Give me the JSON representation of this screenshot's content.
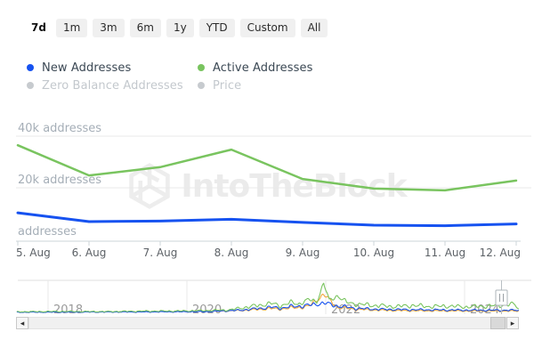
{
  "toolbar": {
    "ranges": [
      {
        "label": "7d",
        "selected": true
      },
      {
        "label": "1m",
        "selected": false
      },
      {
        "label": "3m",
        "selected": false
      },
      {
        "label": "6m",
        "selected": false
      },
      {
        "label": "1y",
        "selected": false
      },
      {
        "label": "YTD",
        "selected": false
      },
      {
        "label": "Custom",
        "selected": false
      },
      {
        "label": "All",
        "selected": false
      }
    ]
  },
  "legend": {
    "items": [
      {
        "label": "New Addresses",
        "color": "#1652f0",
        "enabled": true
      },
      {
        "label": "Active Addresses",
        "color": "#79c45f",
        "enabled": true
      },
      {
        "label": "Zero Balance Addresses",
        "color": "#c7cbcf",
        "enabled": false
      },
      {
        "label": "Price",
        "color": "#c7cbcf",
        "enabled": false
      }
    ]
  },
  "watermark": {
    "text": "IntoTheBlock"
  },
  "colors": {
    "new_addresses": "#1652f0",
    "active_addresses": "#79c45f",
    "price": "#f0a73c",
    "gridline": "#e8e8e8",
    "axis_line": "#ccd4da",
    "y_label": "#a5aeb7",
    "x_label": "#5c6166",
    "year_label": "#9a9a9a",
    "watermark": "#ebebeb"
  },
  "icons": {
    "scrollbar_left": "◂",
    "scrollbar_right": "▸"
  },
  "chart_data": [
    {
      "type": "line",
      "title": "",
      "categories": [
        "5. Aug",
        "6. Aug",
        "7. Aug",
        "8. Aug",
        "9. Aug",
        "10. Aug",
        "11. Aug",
        "12. Aug"
      ],
      "series": [
        {
          "name": "Active Addresses",
          "color": "#79c45f",
          "values": [
            36500,
            24800,
            28000,
            34800,
            23400,
            19700,
            19000,
            22800
          ]
        },
        {
          "name": "New Addresses",
          "color": "#1652f0",
          "values": [
            10300,
            6900,
            7100,
            7800,
            6600,
            5500,
            5300,
            6000
          ]
        }
      ],
      "y_axis": {
        "unit": "addresses",
        "ticks": [
          {
            "value": 0,
            "label": "addresses"
          },
          {
            "value": 20000,
            "label": "20k addresses"
          },
          {
            "value": 40000,
            "label": "40k addresses"
          }
        ],
        "ylim": [
          0,
          46500
        ]
      },
      "grid": true,
      "legend_position": "top-left"
    },
    {
      "type": "line",
      "role": "navigator-overview",
      "year_ticks": [
        {
          "label": "2018",
          "year": 2018
        },
        {
          "label": "2020",
          "year": 2020
        },
        {
          "label": "2022",
          "year": 2022
        },
        {
          "label": "2024",
          "year": 2024
        }
      ],
      "x_range_years": [
        2017.55,
        2024.78
      ],
      "note": "relative activity 0-1, spike late 2021",
      "series": [
        {
          "name": "Active Addresses",
          "color": "#79c45f",
          "anchors": [
            [
              2017.55,
              0.05
            ],
            [
              2018.2,
              0.06
            ],
            [
              2018.8,
              0.055
            ],
            [
              2019.4,
              0.07
            ],
            [
              2019.9,
              0.075
            ],
            [
              2020.3,
              0.09
            ],
            [
              2020.6,
              0.11
            ],
            [
              2020.75,
              0.16
            ],
            [
              2020.9,
              0.22
            ],
            [
              2021.05,
              0.26
            ],
            [
              2021.2,
              0.33
            ],
            [
              2021.35,
              0.25
            ],
            [
              2021.5,
              0.36
            ],
            [
              2021.6,
              0.3
            ],
            [
              2021.75,
              0.45
            ],
            [
              2021.87,
              0.38
            ],
            [
              2021.97,
              1.0
            ],
            [
              2022.05,
              0.42
            ],
            [
              2022.17,
              0.58
            ],
            [
              2022.3,
              0.36
            ],
            [
              2022.45,
              0.3
            ],
            [
              2022.7,
              0.26
            ],
            [
              2023.0,
              0.22
            ],
            [
              2023.25,
              0.26
            ],
            [
              2023.5,
              0.22
            ],
            [
              2023.75,
              0.24
            ],
            [
              2024.0,
              0.21
            ],
            [
              2024.25,
              0.23
            ],
            [
              2024.5,
              0.26
            ],
            [
              2024.72,
              0.3
            ],
            [
              2024.78,
              0.14
            ]
          ]
        },
        {
          "name": "New Addresses",
          "color": "#1652f0",
          "anchors": [
            [
              2017.55,
              0.035
            ],
            [
              2018.5,
              0.04
            ],
            [
              2019.5,
              0.045
            ],
            [
              2020.3,
              0.055
            ],
            [
              2020.75,
              0.1
            ],
            [
              2021.05,
              0.16
            ],
            [
              2021.2,
              0.2
            ],
            [
              2021.35,
              0.17
            ],
            [
              2021.5,
              0.22
            ],
            [
              2021.75,
              0.26
            ],
            [
              2021.97,
              0.34
            ],
            [
              2022.17,
              0.24
            ],
            [
              2022.45,
              0.16
            ],
            [
              2022.8,
              0.13
            ],
            [
              2023.2,
              0.12
            ],
            [
              2023.7,
              0.11
            ],
            [
              2024.2,
              0.1
            ],
            [
              2024.78,
              0.1
            ]
          ]
        },
        {
          "name": "Price",
          "color": "#f0a73c",
          "anchors": [
            [
              2017.55,
              0.04
            ],
            [
              2018.5,
              0.045
            ],
            [
              2019.5,
              0.05
            ],
            [
              2020.3,
              0.055
            ],
            [
              2020.75,
              0.09
            ],
            [
              2021.05,
              0.13
            ],
            [
              2021.2,
              0.16
            ],
            [
              2021.35,
              0.14
            ],
            [
              2021.5,
              0.18
            ],
            [
              2021.75,
              0.22
            ],
            [
              2021.97,
              0.62
            ],
            [
              2022.17,
              0.2
            ],
            [
              2022.45,
              0.13
            ],
            [
              2022.8,
              0.1
            ],
            [
              2023.2,
              0.085
            ],
            [
              2023.7,
              0.08
            ],
            [
              2024.2,
              0.075
            ],
            [
              2024.78,
              0.075
            ]
          ]
        }
      ]
    }
  ]
}
